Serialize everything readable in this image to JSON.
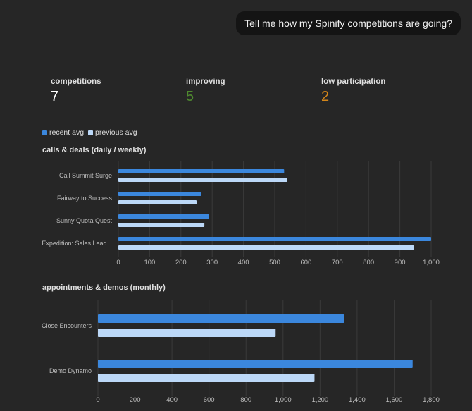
{
  "chat": {
    "message": "Tell me how my Spinify competitions are going?"
  },
  "kpis": [
    {
      "label": "competitions",
      "value": "7",
      "color": "#ffffff"
    },
    {
      "label": "improving",
      "value": "5",
      "color": "#4f8a2f"
    },
    {
      "label": "low participation",
      "value": "2",
      "color": "#d4861a"
    }
  ],
  "colors": {
    "recent": "#3b87dd",
    "previous": "#bcd8f7",
    "grid": "#3a3a3a",
    "axis_text": "#bdbdbd"
  },
  "legend": {
    "recent": "recent avg",
    "previous": "previous avg"
  },
  "chart_data": [
    {
      "type": "bar",
      "orientation": "horizontal",
      "title": "calls & deals (daily / weekly)",
      "categories": [
        "Call Summit Surge",
        "Fairway to Success",
        "Sunny Quota Quest",
        "Expedition: Sales Lead..."
      ],
      "series": [
        {
          "name": "recent avg",
          "values": [
            530,
            265,
            290,
            1000
          ]
        },
        {
          "name": "previous avg",
          "values": [
            540,
            250,
            275,
            945
          ]
        }
      ],
      "xlim": [
        0,
        1000
      ],
      "ticks": [
        0,
        100,
        200,
        300,
        400,
        500,
        600,
        700,
        800,
        900,
        1000
      ],
      "tick_labels": [
        "0",
        "100",
        "200",
        "300",
        "400",
        "500",
        "600",
        "700",
        "800",
        "900",
        "1,000"
      ]
    },
    {
      "type": "bar",
      "orientation": "horizontal",
      "title": "appointments & demos (monthly)",
      "categories": [
        "Close Encounters",
        "Demo Dynamo"
      ],
      "series": [
        {
          "name": "recent avg",
          "values": [
            1330,
            1700
          ]
        },
        {
          "name": "previous avg",
          "values": [
            960,
            1170
          ]
        }
      ],
      "xlim": [
        0,
        1800
      ],
      "ticks": [
        0,
        200,
        400,
        600,
        800,
        1000,
        1200,
        1400,
        1600,
        1800
      ],
      "tick_labels": [
        "0",
        "200",
        "400",
        "600",
        "800",
        "1,000",
        "1,200",
        "1,400",
        "1,600",
        "1,800"
      ]
    }
  ]
}
